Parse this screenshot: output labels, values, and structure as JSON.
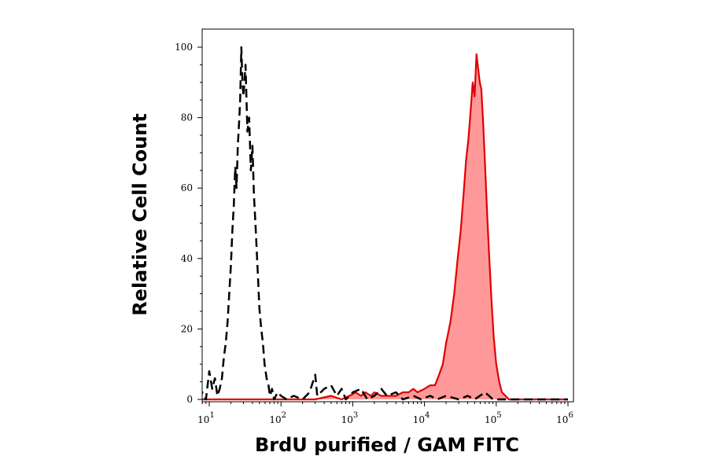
{
  "chart_data": {
    "type": "area",
    "title": "",
    "xlabel": "BrdU purified / GAM FITC",
    "ylabel": "Relative Cell Count",
    "xscale": "log",
    "xlim": [
      7,
      1000000
    ],
    "ylim": [
      0,
      100
    ],
    "grid": false,
    "legend": "none",
    "y_ticks": [
      0,
      20,
      40,
      60,
      80,
      100
    ],
    "x_ticks": [
      {
        "value": 10,
        "base": "10",
        "exp": "1"
      },
      {
        "value": 100,
        "base": "10",
        "exp": "2"
      },
      {
        "value": 1000,
        "base": "10",
        "exp": "3"
      },
      {
        "value": 10000,
        "base": "10",
        "exp": "4"
      },
      {
        "value": 100000,
        "base": "10",
        "exp": "5"
      },
      {
        "value": 1000000,
        "base": "10",
        "exp": "6"
      }
    ],
    "series": [
      {
        "style": "dashed",
        "color": "#000000",
        "fill": "none",
        "points": [
          [
            7.2,
            0
          ],
          [
            8,
            2
          ],
          [
            9,
            0
          ],
          [
            10,
            8
          ],
          [
            11,
            3
          ],
          [
            12,
            6
          ],
          [
            13,
            1
          ],
          [
            14,
            3
          ],
          [
            15,
            6
          ],
          [
            16,
            12
          ],
          [
            17,
            16
          ],
          [
            18,
            22
          ],
          [
            19,
            30
          ],
          [
            20,
            38
          ],
          [
            21,
            48
          ],
          [
            22,
            55
          ],
          [
            23,
            66
          ],
          [
            24,
            60
          ],
          [
            25,
            72
          ],
          [
            26,
            78
          ],
          [
            27,
            85
          ],
          [
            28,
            100
          ],
          [
            29,
            90
          ],
          [
            30,
            86
          ],
          [
            32,
            95
          ],
          [
            34,
            76
          ],
          [
            36,
            80
          ],
          [
            38,
            65
          ],
          [
            40,
            72
          ],
          [
            42,
            58
          ],
          [
            44,
            50
          ],
          [
            46,
            42
          ],
          [
            48,
            34
          ],
          [
            50,
            26
          ],
          [
            53,
            20
          ],
          [
            56,
            16
          ],
          [
            59,
            10
          ],
          [
            63,
            6
          ],
          [
            67,
            4
          ],
          [
            70,
            1
          ],
          [
            75,
            3
          ],
          [
            80,
            0
          ],
          [
            90,
            2
          ],
          [
            100,
            1
          ],
          [
            120,
            0
          ],
          [
            150,
            1
          ],
          [
            200,
            0
          ],
          [
            250,
            2
          ],
          [
            300,
            7
          ],
          [
            320,
            1
          ],
          [
            400,
            3
          ],
          [
            500,
            4
          ],
          [
            600,
            1
          ],
          [
            700,
            3
          ],
          [
            800,
            0
          ],
          [
            1000,
            2
          ],
          [
            1300,
            3
          ],
          [
            1600,
            0
          ],
          [
            2000,
            1
          ],
          [
            2500,
            3
          ],
          [
            3000,
            1
          ],
          [
            4000,
            2
          ],
          [
            5000,
            0
          ],
          [
            7000,
            1
          ],
          [
            9000,
            0
          ],
          [
            12000,
            1
          ],
          [
            15000,
            0
          ],
          [
            20000,
            1
          ],
          [
            30000,
            0
          ],
          [
            40000,
            1
          ],
          [
            50000,
            0
          ],
          [
            70000,
            2
          ],
          [
            90000,
            0
          ],
          [
            120000,
            0
          ],
          [
            200000,
            0
          ],
          [
            1000000,
            0
          ]
        ]
      },
      {
        "style": "solid",
        "color": "#e00000",
        "fill": "#ff9999",
        "points": [
          [
            7.2,
            0
          ],
          [
            100,
            0
          ],
          [
            300,
            0
          ],
          [
            500,
            1
          ],
          [
            700,
            0
          ],
          [
            900,
            1
          ],
          [
            1100,
            2
          ],
          [
            1300,
            1
          ],
          [
            1500,
            2
          ],
          [
            1800,
            1
          ],
          [
            2000,
            2
          ],
          [
            2500,
            1
          ],
          [
            3000,
            1
          ],
          [
            4000,
            1
          ],
          [
            5000,
            2
          ],
          [
            6000,
            2
          ],
          [
            7000,
            3
          ],
          [
            8000,
            2
          ],
          [
            10000,
            3
          ],
          [
            12000,
            4
          ],
          [
            14000,
            4
          ],
          [
            16000,
            7
          ],
          [
            18000,
            10
          ],
          [
            20000,
            16
          ],
          [
            23000,
            22
          ],
          [
            26000,
            30
          ],
          [
            29000,
            40
          ],
          [
            32000,
            48
          ],
          [
            35000,
            58
          ],
          [
            38000,
            68
          ],
          [
            41000,
            74
          ],
          [
            44000,
            82
          ],
          [
            47000,
            90
          ],
          [
            50000,
            86
          ],
          [
            53000,
            98
          ],
          [
            56000,
            94
          ],
          [
            59000,
            90
          ],
          [
            62000,
            88
          ],
          [
            66000,
            78
          ],
          [
            70000,
            66
          ],
          [
            75000,
            52
          ],
          [
            80000,
            40
          ],
          [
            86000,
            28
          ],
          [
            92000,
            18
          ],
          [
            100000,
            10
          ],
          [
            110000,
            5
          ],
          [
            120000,
            2
          ],
          [
            135000,
            1
          ],
          [
            150000,
            0
          ],
          [
            1000000,
            0
          ]
        ]
      }
    ]
  }
}
